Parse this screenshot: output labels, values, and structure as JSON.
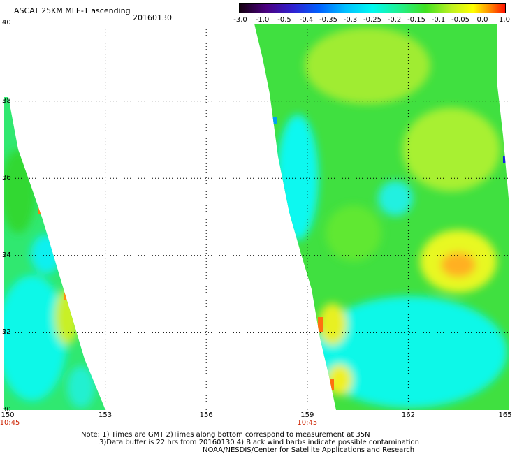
{
  "header": {
    "title": "ASCAT 25KM MLE-1 ascending",
    "date": "20160130"
  },
  "colorbar": {
    "labels": [
      "-3.0",
      "-1.0",
      "-0.5",
      "-0.4",
      "-0.35",
      "-0.3",
      "-0.25",
      "-0.2",
      "-0.15",
      "-0.1",
      "-0.05",
      "0.0",
      "1.0"
    ],
    "colors": [
      "#1a0010",
      "#5a0090",
      "#2030e0",
      "#0090ff",
      "#00d0ff",
      "#00f4f0",
      "#20f080",
      "#30e020",
      "#80f020",
      "#d0f020",
      "#ffff00",
      "#ff9000",
      "#ff2000"
    ]
  },
  "map": {
    "y_ticks": [
      "40",
      "38",
      "36",
      "34",
      "32",
      "30"
    ],
    "x_ticks": [
      "150",
      "153",
      "156",
      "159",
      "162",
      "165"
    ],
    "lat_range": [
      30,
      40
    ],
    "lon_range": [
      150,
      165
    ],
    "pass_times": [
      {
        "lon": 150,
        "label": "10:45"
      },
      {
        "lon": 159,
        "label": "10:45"
      }
    ]
  },
  "notes": {
    "line1": "Note: 1) Times are GMT 2)Times along bottom correspond to measurement at 35N",
    "line2": "3)Data buffer is 22 hrs from 20160130 4) Black wind barbs indicate possible contamination",
    "line3": "NOAA/NESDIS/Center for Satellite Applications and Research"
  }
}
